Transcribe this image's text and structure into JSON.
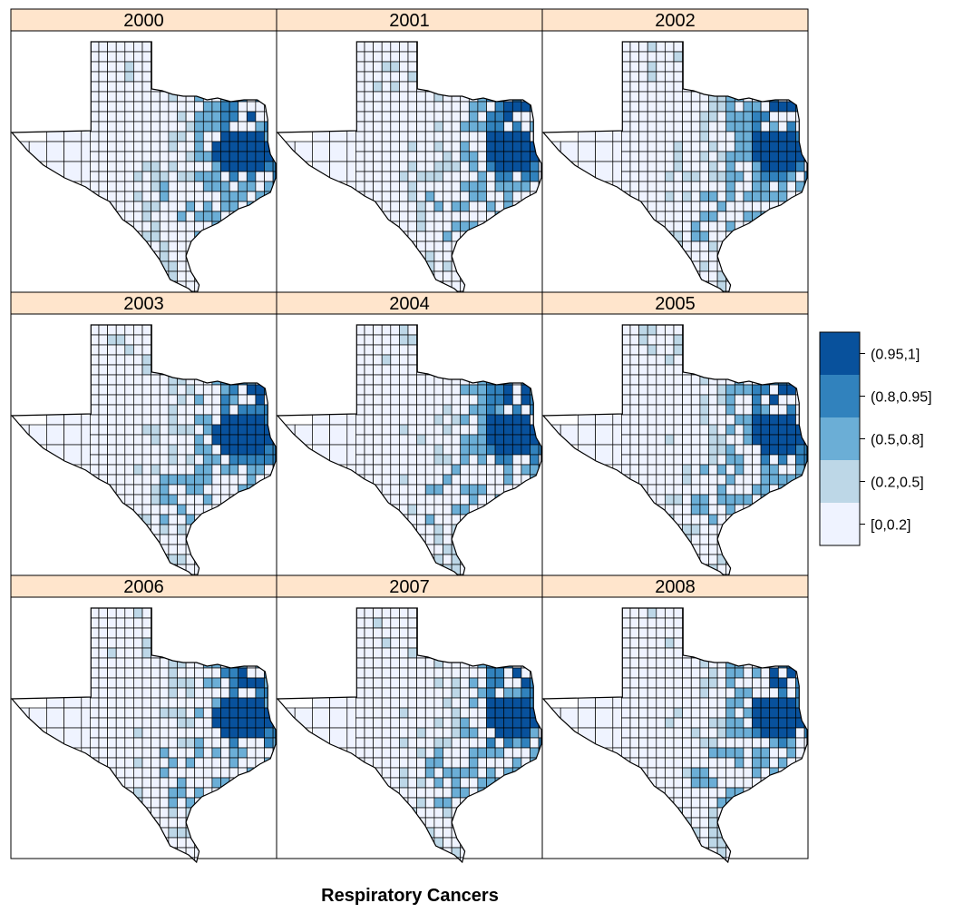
{
  "title": "Respiratory Cancers",
  "panels": [
    {
      "year": "2000",
      "variant": 0
    },
    {
      "year": "2001",
      "variant": 1
    },
    {
      "year": "2002",
      "variant": 2
    },
    {
      "year": "2003",
      "variant": 3
    },
    {
      "year": "2004",
      "variant": 4
    },
    {
      "year": "2005",
      "variant": 5
    },
    {
      "year": "2006",
      "variant": 6
    },
    {
      "year": "2007",
      "variant": 7
    },
    {
      "year": "2008",
      "variant": 8
    }
  ],
  "legend": {
    "items": [
      {
        "label": "(0.95,1]",
        "color": "#08519c"
      },
      {
        "label": "(0.8,0.95]",
        "color": "#3182bd"
      },
      {
        "label": "(0.5,0.8]",
        "color": "#6baed6"
      },
      {
        "label": "(0.2,0.5]",
        "color": "#bdd7e7"
      },
      {
        "label": "[0,0.2]",
        "color": "#eff3ff"
      }
    ]
  },
  "colors": {
    "strip_background": "#ffe5cc",
    "border": "#000000",
    "county_stroke": "#000000"
  }
}
